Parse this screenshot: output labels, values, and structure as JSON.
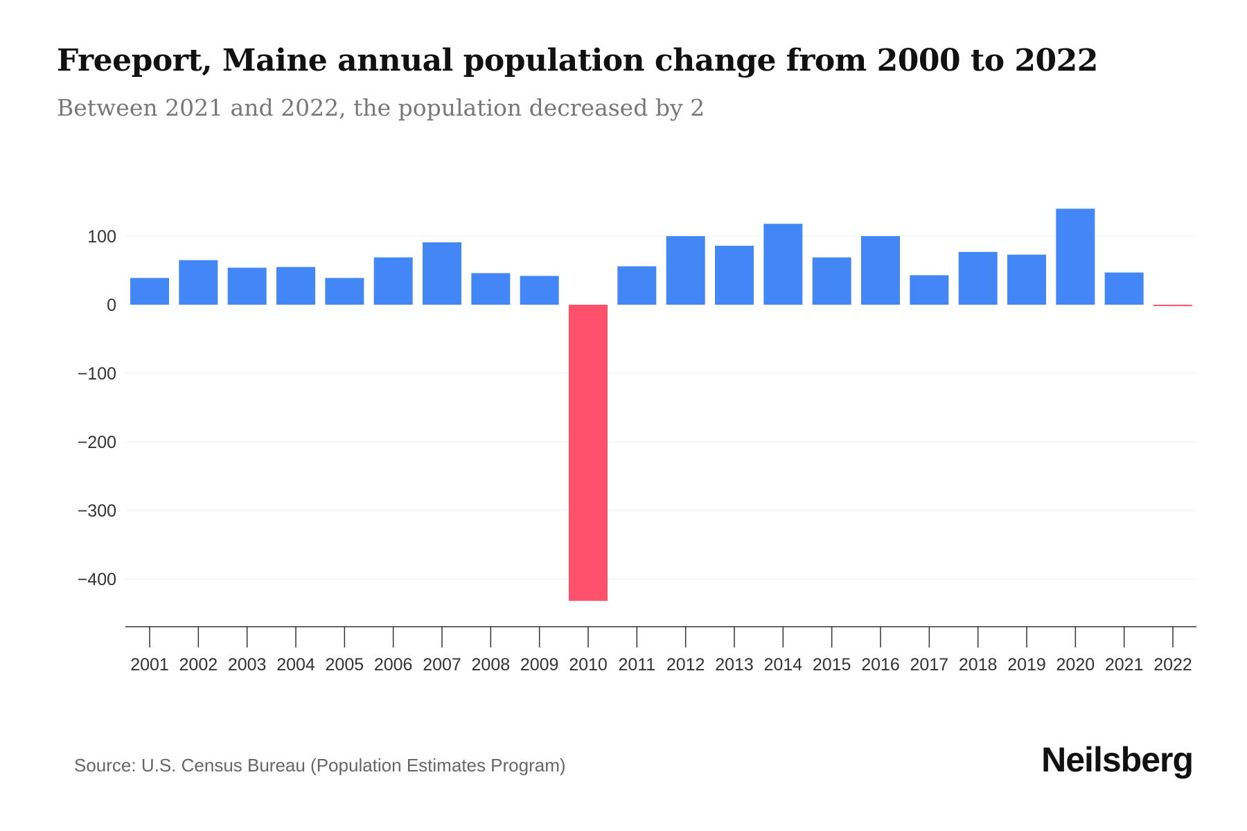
{
  "title": "Freeport, Maine annual population change from 2000 to 2022",
  "subtitle": "Between 2021 and 2022, the population decreased by 2",
  "source": "Source: U.S. Census Bureau (Population Estimates Program)",
  "logo": "Neilsberg",
  "colors": {
    "positive": "#4287F5",
    "negative": "#FF516C"
  },
  "chart_data": {
    "type": "bar",
    "title": "Freeport, Maine annual population change from 2000 to 2022",
    "xlabel": "",
    "ylabel": "",
    "ylim": [
      -460,
      160
    ],
    "yticks": [
      100,
      0,
      -100,
      -200,
      -300,
      -400
    ],
    "ytick_labels": [
      "100",
      "0",
      "−100",
      "−200",
      "−300",
      "−400"
    ],
    "grid": true,
    "categories": [
      "2001",
      "2002",
      "2003",
      "2004",
      "2005",
      "2006",
      "2007",
      "2008",
      "2009",
      "2010",
      "2011",
      "2012",
      "2013",
      "2014",
      "2015",
      "2016",
      "2017",
      "2018",
      "2019",
      "2020",
      "2021",
      "2022"
    ],
    "values": [
      39,
      65,
      54,
      55,
      39,
      69,
      91,
      46,
      42,
      -432,
      56,
      100,
      86,
      118,
      69,
      100,
      43,
      77,
      73,
      140,
      47,
      -2
    ]
  }
}
